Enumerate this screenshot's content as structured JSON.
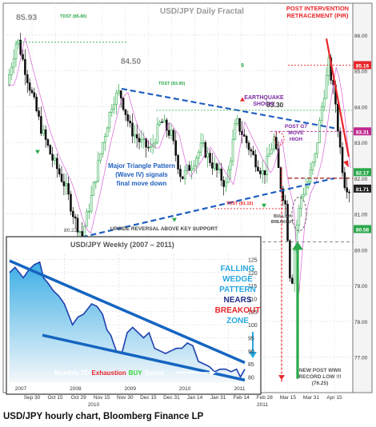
{
  "caption": "USD/JPY hourly chart, Bloomberg Finance LP",
  "chart_data": [
    {
      "type": "candlestick",
      "title": "USD/JPY Daily Fractal",
      "y_ticks": [
        "86.00",
        "85.00",
        "84.00",
        "83.00",
        "82.00",
        "81.00",
        "80.00",
        "79.00",
        "78.00",
        "77.00"
      ],
      "ylim": [
        76.1,
        86.6
      ],
      "x_ticks": [
        "Sep 30",
        "Oct 15",
        "Oct 29",
        "Nov 15",
        "Nov 30",
        "Dec 15",
        "Dec 31",
        "Jan 14",
        "Jan 31",
        "Feb 14",
        "Feb 28",
        "Mar 15",
        "Mar 31",
        "Apr 15"
      ],
      "x_year_labels": [
        "2010",
        "2011"
      ],
      "price_tags": [
        {
          "value": 85.16,
          "text": "85.16",
          "color": "#e8262a"
        },
        {
          "value": 83.31,
          "text": "83.31",
          "color": "#c02a90"
        },
        {
          "value": 82.17,
          "text": "82.17",
          "color": "#2aa84a"
        },
        {
          "value": 81.71,
          "text": "81.71",
          "color": "#222222"
        },
        {
          "value": 80.58,
          "text": "80.58",
          "color": "#2aa84a"
        }
      ],
      "key_levels": {
        "high": "85.93",
        "triangle_top": "84.50",
        "g7_level": "83.30",
        "support": "80.22",
        "record_low": "76.25"
      },
      "annotations": {
        "tdst_top": "TDST (85.80)",
        "tdst_mid": "TDST (83.90)",
        "tdst_low": "TDST (81.15)",
        "nine": "9",
        "pir": [
          "POST INTERVENTION",
          "RETRACEMENT (PIR)"
        ],
        "earthquake": [
          "EARTHQUAKE",
          "SHOCK!"
        ],
        "post_g7": [
          "POST G7",
          "MOVE",
          "HIGH"
        ],
        "triangle": [
          "Major Triangle Pattern",
          "(Wave IV) signals",
          "final move down"
        ],
        "bullish": [
          "BULLISH",
          "BREAKOUT"
        ],
        "upside": "UPSIDE REVERSAL   ABOVE  KEY SUPPORT",
        "record": [
          "NEW POST WWII",
          "RECORD LOW !!!",
          "(76.25)"
        ]
      },
      "colors": {
        "up": "#2aa84a",
        "down": "#111111",
        "trend": "#1f5fbf",
        "signal": "#e8262a",
        "wave": "#c02a90"
      },
      "grid": true
    },
    {
      "type": "area",
      "title": "USD/JPY Weekly (2007 – 2011)",
      "y_ticks": [
        "125",
        "120",
        "115",
        "110",
        "105",
        "100",
        "95",
        "90",
        "85",
        "80"
      ],
      "ylim": [
        78,
        127
      ],
      "x_labels": [
        "2007",
        "2008",
        "2009",
        "2010",
        "2011"
      ],
      "x": [
        2007.0,
        2007.1,
        2007.25,
        2007.35,
        2007.45,
        2007.55,
        2007.62,
        2007.7,
        2007.8,
        2007.9,
        2008.0,
        2008.15,
        2008.25,
        2008.35,
        2008.5,
        2008.6,
        2008.7,
        2008.78,
        2008.85,
        2008.95,
        2009.05,
        2009.15,
        2009.25,
        2009.35,
        2009.45,
        2009.55,
        2009.65,
        2009.75,
        2009.85,
        2009.95,
        2010.05,
        2010.15,
        2010.25,
        2010.35,
        2010.45,
        2010.55,
        2010.65,
        2010.75,
        2010.85,
        2010.95,
        2011.05,
        2011.15,
        2011.22,
        2011.3
      ],
      "y": [
        120,
        122,
        118,
        121,
        123,
        124,
        118,
        116,
        113,
        111,
        108,
        100,
        103,
        104,
        108,
        107,
        104,
        98,
        96,
        90,
        89,
        97,
        99,
        97,
        95,
        97,
        91,
        90,
        89,
        90,
        91,
        91,
        93,
        92,
        86,
        85,
        84,
        82,
        83,
        83,
        82,
        83,
        80,
        83
      ],
      "annotations": {
        "wedge": [
          "FALLING",
          "WEDGE",
          "PATTERN",
          "NEARS",
          "BREAKOUT",
          "ZONE"
        ],
        "monthly_td": [
          "Monthly TD",
          "Exhaustion",
          "BUY",
          "Signal"
        ]
      },
      "colors": {
        "line": "#1f3fb0",
        "fill_top": "#1aa0e0",
        "fill_bottom": "#f2f6fa",
        "wedge": "#1565c0"
      }
    }
  ]
}
